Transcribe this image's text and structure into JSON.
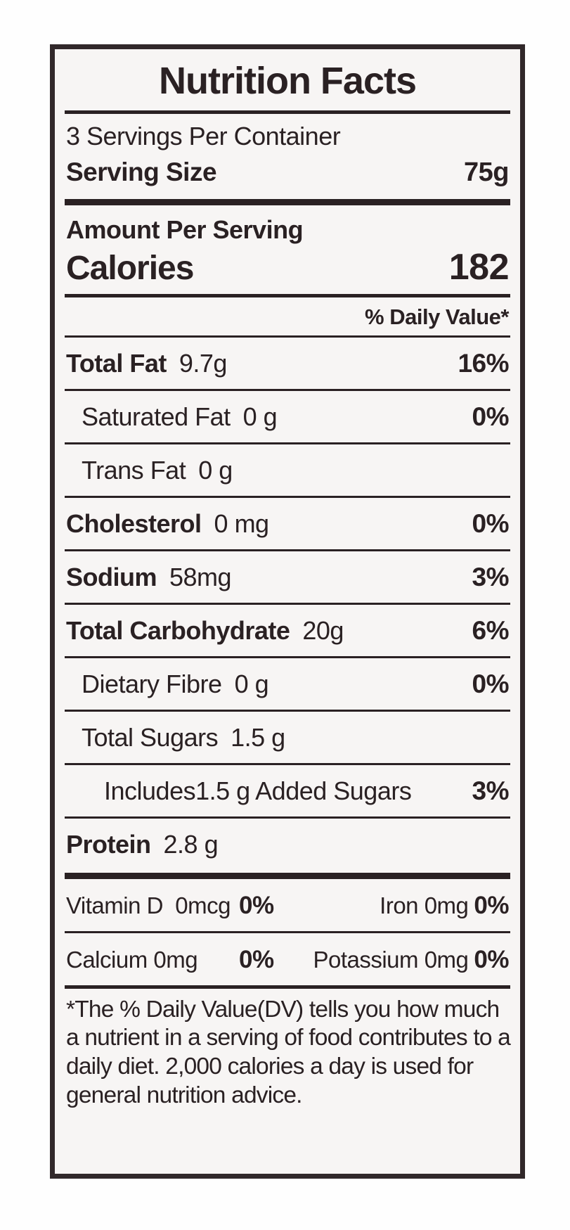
{
  "label": {
    "title": "Nutrition Facts",
    "servings_per_container": "3 Servings Per Container",
    "serving_size": {
      "label": "Serving Size",
      "value": "75g"
    },
    "amount_per_serving": "Amount Per Serving",
    "calories": {
      "label": "Calories",
      "value": "182"
    },
    "daily_value_header": "% Daily Value*",
    "nutrients": [
      {
        "name": "Total Fat",
        "amount": "9.7g",
        "dv": "16%"
      },
      {
        "name": "Saturated Fat",
        "amount": "0 g",
        "dv": "0%"
      },
      {
        "name": "Trans Fat",
        "amount": "0 g",
        "dv": ""
      },
      {
        "name": "Cholesterol",
        "amount": "0 mg",
        "dv": "0%"
      },
      {
        "name": "Sodium",
        "amount": "58mg",
        "dv": "3%"
      },
      {
        "name": "Total Carbohydrate",
        "amount": "20g",
        "dv": "6%"
      },
      {
        "name": "Dietary Fibre",
        "amount": "0 g",
        "dv": "0%"
      },
      {
        "name": "Total Sugars",
        "amount": "1.5 g",
        "dv": ""
      },
      {
        "name": "Includes1.5 g Added Sugars",
        "amount": "",
        "dv": "3%"
      },
      {
        "name": "Protein",
        "amount": "2.8 g",
        "dv": ""
      }
    ],
    "micronutrients": [
      {
        "left": {
          "name": "Vitamin D",
          "amount": "0mcg",
          "dv": "0%"
        },
        "right": {
          "name": "Iron",
          "amount": "0mg",
          "dv": "0%"
        }
      },
      {
        "left": {
          "name": "Calcium",
          "amount": "0mg",
          "dv": "0%"
        },
        "right": {
          "name": "Potassium",
          "amount": "0mg",
          "dv": "0%"
        }
      }
    ],
    "footnote": "*The % Daily Value(DV) tells you how much a nutrient in a serving of food contributes to a daily diet. 2,000 calories a day is used for general nutrition advice."
  },
  "colors": {
    "text": "#2a2123",
    "label_background": "#f7f5f4",
    "page_background": "#fefefe",
    "border": "#31282a"
  }
}
